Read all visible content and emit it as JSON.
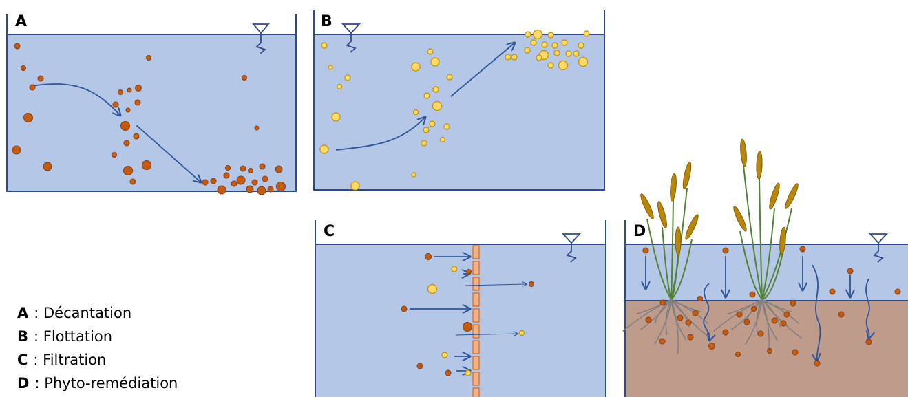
{
  "panels": [
    {
      "label": "A"
    },
    {
      "label": "B"
    },
    {
      "label": "C"
    },
    {
      "label": "D"
    }
  ],
  "legend": [
    {
      "key": "A",
      "text": ": Décantation"
    },
    {
      "key": "B",
      "text": ": Flottation"
    },
    {
      "key": "C",
      "text": ": Filtration"
    },
    {
      "key": "D",
      "text": ": Phyto-remédiation"
    }
  ]
}
